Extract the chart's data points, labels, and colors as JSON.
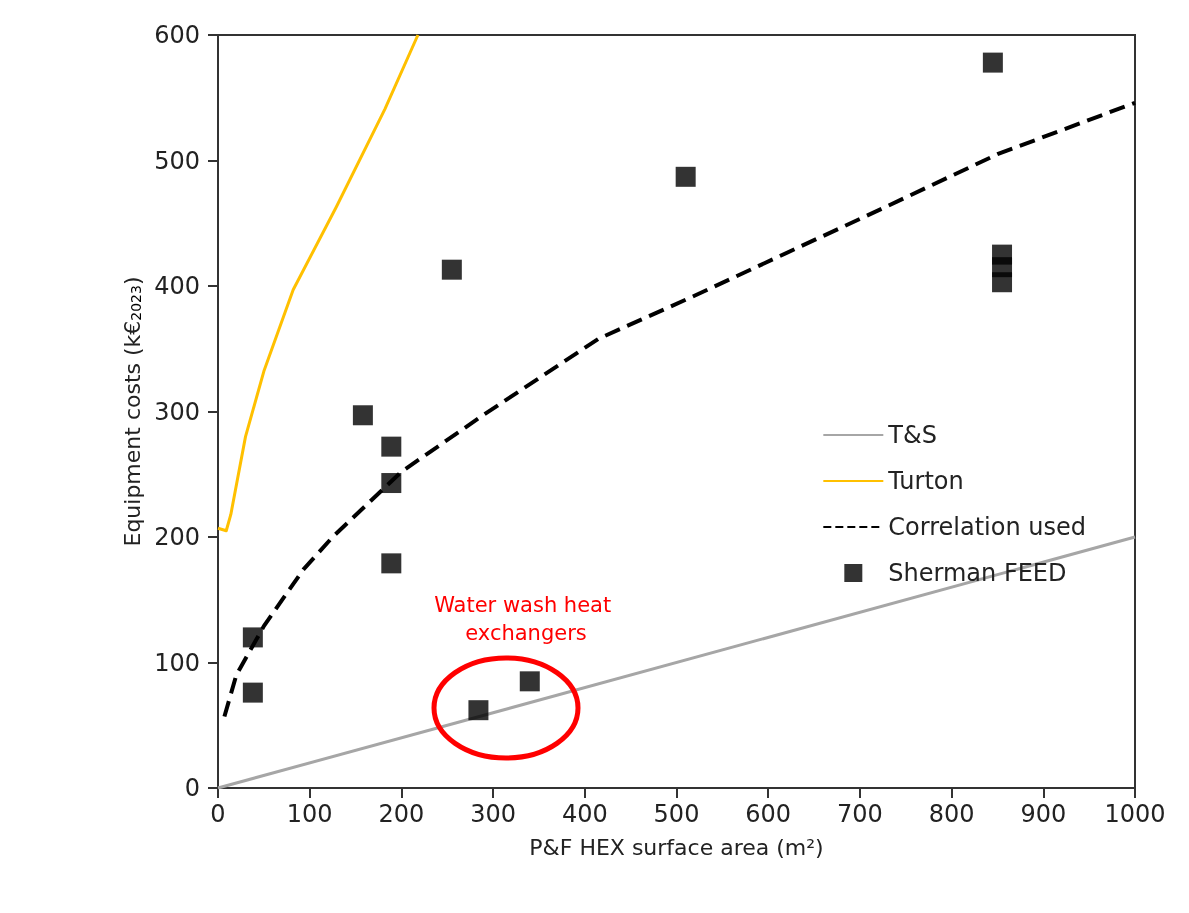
{
  "chart_data": {
    "type": "line",
    "xlabel": "P&F HEX surface area (m²)",
    "ylabel": "Equipment costs (k€$_{2023}$)",
    "xlim": [
      0,
      1000
    ],
    "xticks": [
      0,
      100,
      200,
      300,
      400,
      500,
      600,
      700,
      800,
      900,
      1000
    ],
    "ylim": [
      0,
      600
    ],
    "yticks": [
      0,
      100,
      200,
      300,
      400,
      500,
      600
    ],
    "grid": false,
    "legend": "right",
    "series": [
      {
        "name": "T&S",
        "color": "#a6a6a6",
        "marker": "none",
        "line_style": "solid",
        "x": [
          0,
          1000
        ],
        "values": [
          0,
          200
        ]
      },
      {
        "name": "Turton",
        "color": "#ffc000",
        "marker": "none",
        "line_style": "solid",
        "x": [
          0,
          9,
          14,
          30,
          50,
          82,
          129,
          182,
          218
        ],
        "values": [
          207,
          205,
          218,
          280,
          332,
          397,
          463,
          541,
          600
        ]
      },
      {
        "name": "Correlation used",
        "color": "#000000",
        "marker": "none",
        "line_style": "dashed",
        "x": [
          7,
          20,
          50,
          93,
          125,
          161,
          200,
          289,
          415,
          519,
          728,
          850,
          1000
        ],
        "values": [
          57,
          90,
          129,
          174,
          200,
          225,
          252,
          297,
          358,
          392,
          463,
          505,
          546
        ]
      },
      {
        "name": "Sherman FEED",
        "type": "scatter",
        "color": "#000000",
        "marker": "square",
        "x": [
          38,
          38,
          158,
          189,
          189,
          189,
          255,
          284,
          340,
          510,
          845,
          855,
          855,
          855
        ],
        "values": [
          120,
          76,
          297,
          272,
          243,
          179,
          413,
          62,
          85,
          487,
          578,
          425,
          415,
          403
        ]
      }
    ],
    "annotations": [
      "Water wash heat exchangers"
    ]
  }
}
